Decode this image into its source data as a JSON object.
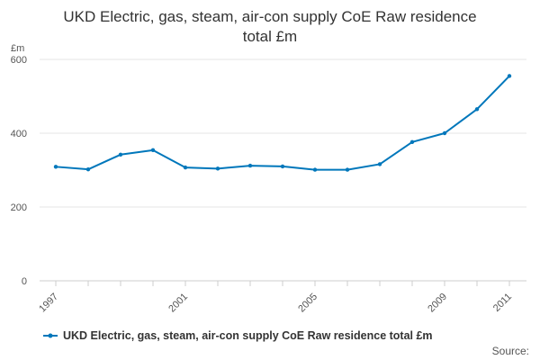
{
  "chart_data": {
    "type": "line",
    "title_lines": [
      "UKD Electric, gas, steam, air-con supply CoE Raw residence",
      "total £m"
    ],
    "ylabel": "£m",
    "xlabel": "",
    "ylim": [
      0,
      600
    ],
    "xlim": [
      1997,
      2011
    ],
    "yticks": [
      0,
      200,
      400,
      600
    ],
    "xticks": [
      1997,
      2001,
      2005,
      2009,
      2011
    ],
    "grid": true,
    "legend_position": "bottom",
    "series": [
      {
        "name": "UKD Electric, gas, steam, air-con supply CoE Raw residence total £m",
        "color": "#0077bb",
        "points": [
          {
            "x": 1997,
            "y": 309
          },
          {
            "x": 1998,
            "y": 302
          },
          {
            "x": 1999,
            "y": 342
          },
          {
            "x": 2000,
            "y": 354
          },
          {
            "x": 2001,
            "y": 307
          },
          {
            "x": 2002,
            "y": 304
          },
          {
            "x": 2003,
            "y": 312
          },
          {
            "x": 2004,
            "y": 310
          },
          {
            "x": 2005,
            "y": 301
          },
          {
            "x": 2006,
            "y": 301
          },
          {
            "x": 2007,
            "y": 316
          },
          {
            "x": 2008,
            "y": 376
          },
          {
            "x": 2009,
            "y": 400
          },
          {
            "x": 2010,
            "y": 465
          },
          {
            "x": 2011,
            "y": 555
          }
        ]
      }
    ]
  },
  "source_label": "Source:"
}
